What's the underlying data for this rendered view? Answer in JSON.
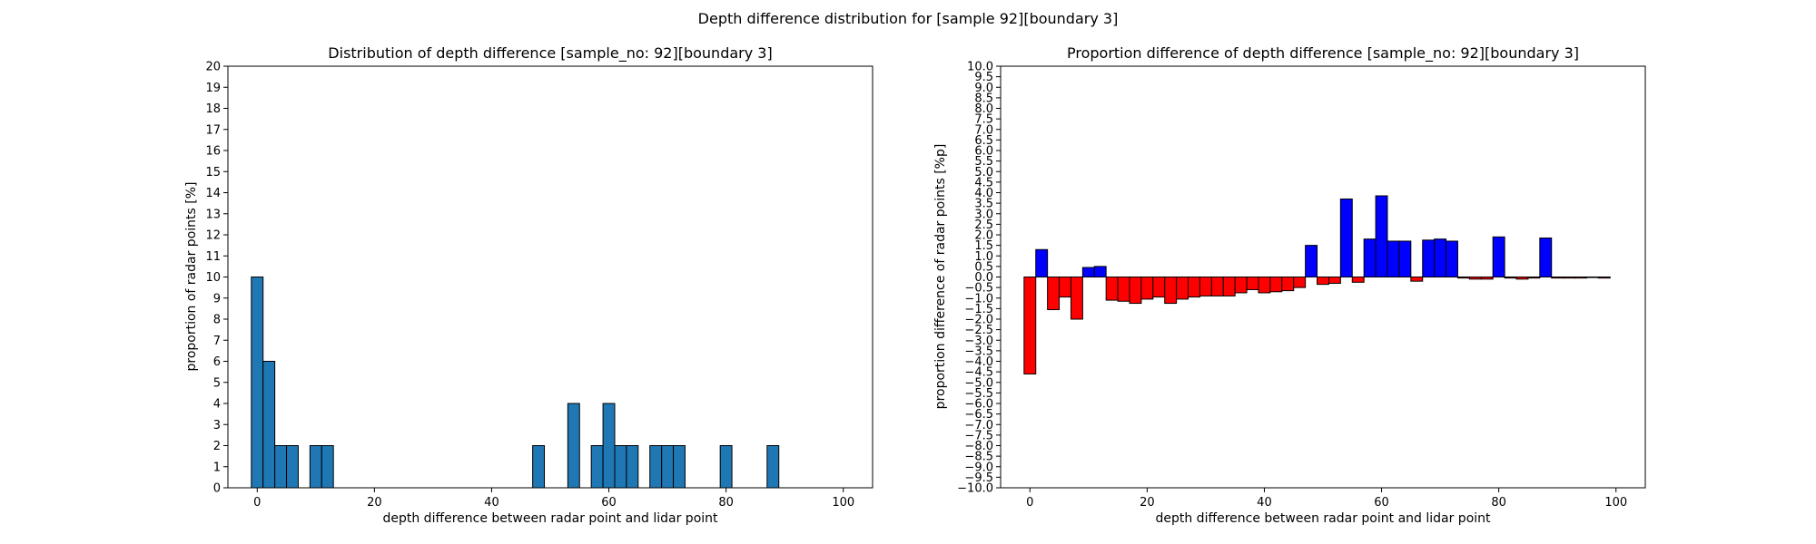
{
  "suptitle": "Depth difference distribution for [sample 92][boundary 3]",
  "chart_data": [
    {
      "type": "bar",
      "title": "Distribution of depth difference [sample_no: 92][boundary 3]",
      "xlabel": "depth difference between radar point and lidar point",
      "ylabel": "proportion of radar points [%]",
      "xlim": [
        -5,
        105
      ],
      "ylim": [
        0,
        20
      ],
      "xticks": [
        0,
        20,
        40,
        60,
        80,
        100
      ],
      "yticks": [
        0,
        1,
        2,
        3,
        4,
        5,
        6,
        7,
        8,
        9,
        10,
        11,
        12,
        13,
        14,
        15,
        16,
        17,
        18,
        19,
        20
      ],
      "bar_width": 2,
      "colors": {
        "bar": "#1f77b4",
        "edge": "#000000"
      },
      "bars": [
        {
          "x": 0,
          "value": 10
        },
        {
          "x": 2,
          "value": 6
        },
        {
          "x": 4,
          "value": 2
        },
        {
          "x": 6,
          "value": 2
        },
        {
          "x": 10,
          "value": 2
        },
        {
          "x": 12,
          "value": 2
        },
        {
          "x": 48,
          "value": 2
        },
        {
          "x": 54,
          "value": 4
        },
        {
          "x": 58,
          "value": 2
        },
        {
          "x": 60,
          "value": 4
        },
        {
          "x": 62,
          "value": 2
        },
        {
          "x": 64,
          "value": 2
        },
        {
          "x": 68,
          "value": 2
        },
        {
          "x": 70,
          "value": 2
        },
        {
          "x": 72,
          "value": 2
        },
        {
          "x": 80,
          "value": 2
        },
        {
          "x": 88,
          "value": 2
        }
      ]
    },
    {
      "type": "bar",
      "title": "Proportion difference of depth difference [sample_no: 92][boundary 3]",
      "xlabel": "depth difference between radar point and lidar point",
      "ylabel": "proportion difference of radar points [%p]",
      "xlim": [
        -5,
        105
      ],
      "ylim": [
        -10,
        10
      ],
      "xticks": [
        0,
        20,
        40,
        60,
        80,
        100
      ],
      "yticks": [
        "-10.0",
        "-9.5",
        "-9.0",
        "-8.5",
        "-8.0",
        "-7.5",
        "-7.0",
        "-6.5",
        "-6.0",
        "-5.5",
        "-5.0",
        "-4.5",
        "-4.0",
        "-3.5",
        "-3.0",
        "-2.5",
        "-2.0",
        "-1.5",
        "-1.0",
        "-0.5",
        "0.0",
        "0.5",
        "1.0",
        "1.5",
        "2.0",
        "2.5",
        "3.0",
        "3.5",
        "4.0",
        "4.5",
        "5.0",
        "5.5",
        "6.0",
        "6.5",
        "7.0",
        "7.5",
        "8.0",
        "8.5",
        "9.0",
        "9.5",
        "10.0"
      ],
      "bar_width": 2,
      "colors": {
        "positive": "#0000ff",
        "negative": "#ff0000",
        "edge": "#000000"
      },
      "bars": [
        {
          "x": 0,
          "value": -4.6
        },
        {
          "x": 2,
          "value": 1.3
        },
        {
          "x": 4,
          "value": -1.55
        },
        {
          "x": 6,
          "value": -0.95
        },
        {
          "x": 8,
          "value": -2.0
        },
        {
          "x": 10,
          "value": 0.45
        },
        {
          "x": 12,
          "value": 0.5
        },
        {
          "x": 14,
          "value": -1.1
        },
        {
          "x": 16,
          "value": -1.15
        },
        {
          "x": 18,
          "value": -1.25
        },
        {
          "x": 20,
          "value": -1.05
        },
        {
          "x": 22,
          "value": -0.95
        },
        {
          "x": 24,
          "value": -1.25
        },
        {
          "x": 26,
          "value": -1.05
        },
        {
          "x": 28,
          "value": -0.95
        },
        {
          "x": 30,
          "value": -0.9
        },
        {
          "x": 32,
          "value": -0.9
        },
        {
          "x": 34,
          "value": -0.9
        },
        {
          "x": 36,
          "value": -0.75
        },
        {
          "x": 38,
          "value": -0.6
        },
        {
          "x": 40,
          "value": -0.75
        },
        {
          "x": 42,
          "value": -0.7
        },
        {
          "x": 44,
          "value": -0.65
        },
        {
          "x": 46,
          "value": -0.5
        },
        {
          "x": 48,
          "value": 1.5
        },
        {
          "x": 50,
          "value": -0.35
        },
        {
          "x": 52,
          "value": -0.3
        },
        {
          "x": 54,
          "value": 3.7
        },
        {
          "x": 56,
          "value": -0.25
        },
        {
          "x": 58,
          "value": 1.8
        },
        {
          "x": 60,
          "value": 3.85
        },
        {
          "x": 62,
          "value": 1.7
        },
        {
          "x": 64,
          "value": 1.7
        },
        {
          "x": 66,
          "value": -0.2
        },
        {
          "x": 68,
          "value": 1.75
        },
        {
          "x": 70,
          "value": 1.8
        },
        {
          "x": 72,
          "value": 1.7
        },
        {
          "x": 74,
          "value": -0.05
        },
        {
          "x": 76,
          "value": -0.1
        },
        {
          "x": 78,
          "value": -0.1
        },
        {
          "x": 80,
          "value": 1.9
        },
        {
          "x": 82,
          "value": -0.05
        },
        {
          "x": 84,
          "value": -0.1
        },
        {
          "x": 86,
          "value": -0.05
        },
        {
          "x": 88,
          "value": 1.85
        },
        {
          "x": 90,
          "value": -0.05
        },
        {
          "x": 92,
          "value": -0.05
        },
        {
          "x": 94,
          "value": -0.05
        },
        {
          "x": 96,
          "value": -0.02
        },
        {
          "x": 98,
          "value": -0.05
        }
      ]
    }
  ]
}
